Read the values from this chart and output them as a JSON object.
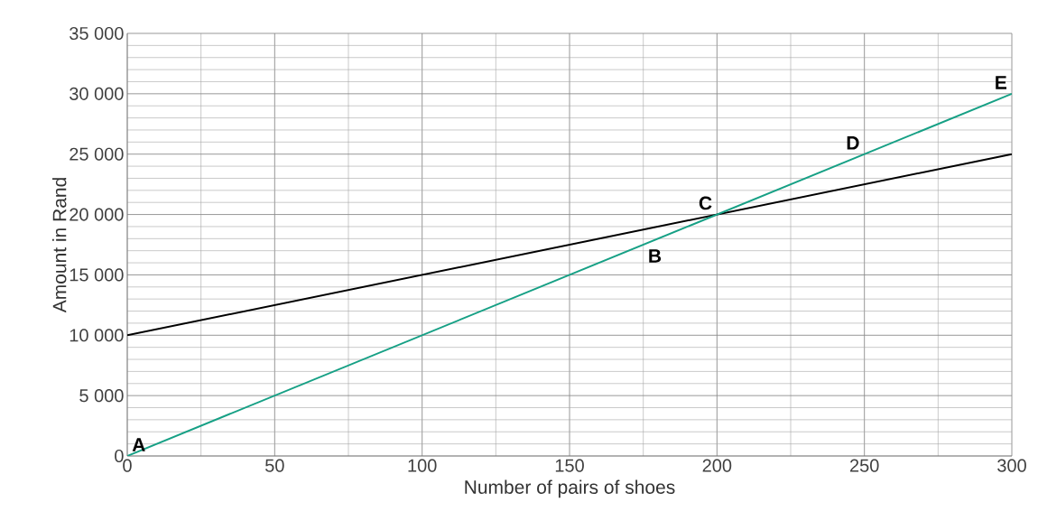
{
  "chart_data": {
    "type": "line",
    "xlabel": "Number of pairs of shoes",
    "ylabel": "Amount in Rand",
    "x": [
      0,
      300
    ],
    "series": [
      {
        "color": "#000000",
        "values": [
          10000,
          25000
        ]
      },
      {
        "color": "#16a085",
        "values": [
          0,
          30000
        ]
      }
    ],
    "xlim": [
      0,
      300
    ],
    "ylim": [
      0,
      35000
    ],
    "xticks": [
      0,
      50,
      100,
      150,
      200,
      250,
      300
    ],
    "yticks": [
      0,
      {
        "value": 5000,
        "label": "5 000"
      },
      {
        "value": 10000,
        "label": "10 000"
      },
      {
        "value": 15000,
        "label": "15 000"
      },
      {
        "value": 20000,
        "label": "20 000"
      },
      {
        "value": 25000,
        "label": "25 000"
      },
      {
        "value": 30000,
        "label": "30 000"
      },
      {
        "value": 35000,
        "label": "35 000"
      }
    ],
    "grid": true,
    "annotations": [
      {
        "text": "A",
        "x": 0,
        "y": 0
      },
      {
        "text": "B",
        "x": 175,
        "y": 17500
      },
      {
        "text": "C",
        "x": 200,
        "y": 20000
      },
      {
        "text": "D",
        "x": 250,
        "y": 25000
      },
      {
        "text": "E",
        "x": 300,
        "y": 30000
      }
    ]
  }
}
